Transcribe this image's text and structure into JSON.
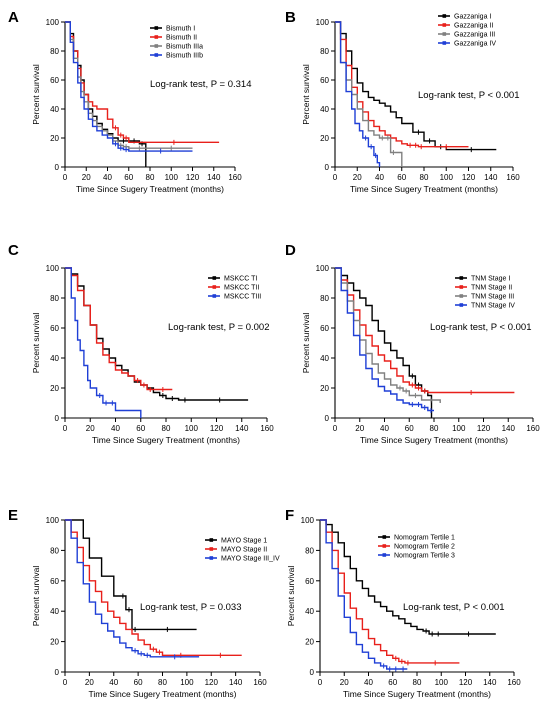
{
  "chart_data": [
    {
      "type": "line",
      "panel": "A",
      "ylabel": "Percent survival",
      "xlabel": "Time Since Sugery Treatment (months)",
      "xlim": [
        0,
        160
      ],
      "ylim": [
        0,
        100
      ],
      "xticks": [
        0,
        20,
        40,
        60,
        80,
        100,
        120,
        140,
        160
      ],
      "yticks": [
        0,
        20,
        40,
        60,
        80,
        100
      ],
      "annotation": "Log-rank test, P = 0.314",
      "legend_position": "top-right",
      "series": [
        {
          "name": "Bismuth I",
          "color": "#000000",
          "x": [
            0,
            5,
            8,
            12,
            15,
            18,
            22,
            26,
            30,
            35,
            40,
            45,
            50,
            60,
            70,
            75,
            76
          ],
          "y": [
            100,
            92,
            80,
            70,
            60,
            50,
            40,
            35,
            30,
            26,
            23,
            20,
            18,
            18,
            16,
            16,
            0
          ]
        },
        {
          "name": "Bismuth II",
          "color": "#e8201b",
          "x": [
            0,
            5,
            8,
            12,
            15,
            18,
            22,
            26,
            30,
            35,
            40,
            45,
            50,
            55,
            60,
            145
          ],
          "y": [
            100,
            90,
            80,
            68,
            58,
            50,
            45,
            42,
            40,
            40,
            33,
            27,
            22,
            20,
            17,
            17
          ]
        },
        {
          "name": "Bismuth IIIa",
          "color": "#808080",
          "x": [
            0,
            5,
            8,
            12,
            15,
            18,
            22,
            26,
            30,
            35,
            40,
            45,
            50,
            55,
            60,
            80,
            120
          ],
          "y": [
            100,
            88,
            75,
            62,
            52,
            45,
            37,
            32,
            28,
            25,
            22,
            18,
            15,
            14,
            13,
            13,
            13
          ]
        },
        {
          "name": "Bismuth IIIb",
          "color": "#1f3fd6",
          "x": [
            0,
            5,
            8,
            12,
            15,
            18,
            22,
            26,
            30,
            35,
            40,
            45,
            50,
            55,
            60,
            120
          ],
          "y": [
            100,
            86,
            72,
            58,
            48,
            40,
            33,
            28,
            25,
            22,
            20,
            16,
            13,
            12,
            11,
            11
          ]
        }
      ]
    },
    {
      "type": "line",
      "panel": "B",
      "ylabel": "Percent survival",
      "xlabel": "Time Since Sugery Treatment (months)",
      "xlim": [
        0,
        160
      ],
      "ylim": [
        0,
        100
      ],
      "xticks": [
        0,
        20,
        40,
        60,
        80,
        100,
        120,
        140,
        160
      ],
      "yticks": [
        0,
        20,
        40,
        60,
        80,
        100
      ],
      "annotation": "Log-rank test, P < 0.001",
      "legend_position": "top-right",
      "series": [
        {
          "name": "Gazzaniga I",
          "color": "#000000",
          "x": [
            0,
            5,
            10,
            15,
            20,
            25,
            30,
            35,
            40,
            45,
            50,
            55,
            60,
            70,
            80,
            90,
            100,
            145
          ],
          "y": [
            100,
            92,
            80,
            68,
            58,
            52,
            48,
            46,
            44,
            42,
            38,
            34,
            30,
            24,
            18,
            14,
            12,
            12
          ]
        },
        {
          "name": "Gazzaniga II",
          "color": "#e8201b",
          "x": [
            0,
            5,
            10,
            15,
            20,
            25,
            30,
            35,
            40,
            45,
            50,
            55,
            60,
            65,
            70,
            75,
            80,
            120
          ],
          "y": [
            100,
            88,
            70,
            55,
            45,
            38,
            32,
            28,
            25,
            22,
            20,
            18,
            16,
            15,
            15,
            14,
            14,
            14
          ]
        },
        {
          "name": "Gazzaniga III",
          "color": "#808080",
          "x": [
            0,
            5,
            10,
            15,
            20,
            25,
            30,
            35,
            40,
            45,
            50,
            55,
            60
          ],
          "y": [
            100,
            72,
            60,
            50,
            40,
            32,
            25,
            22,
            20,
            20,
            10,
            10,
            0
          ]
        },
        {
          "name": "Gazzaniga IV",
          "color": "#1f3fd6",
          "x": [
            0,
            5,
            10,
            15,
            18,
            22,
            25,
            30,
            35,
            38,
            40
          ],
          "y": [
            100,
            72,
            52,
            40,
            30,
            25,
            20,
            14,
            8,
            3,
            0
          ]
        }
      ]
    },
    {
      "type": "line",
      "panel": "C",
      "ylabel": "Percent survival",
      "xlabel": "Time Since Sugery Treatment (months)",
      "xlim": [
        0,
        160
      ],
      "ylim": [
        0,
        100
      ],
      "xticks": [
        0,
        20,
        40,
        60,
        80,
        100,
        120,
        140,
        160
      ],
      "yticks": [
        0,
        20,
        40,
        60,
        80,
        100
      ],
      "annotation": "Log-rank test, P = 0.002",
      "legend_position": "top-right",
      "series": [
        {
          "name": "MSKCC TI",
          "color": "#000000",
          "x": [
            0,
            5,
            10,
            15,
            20,
            25,
            30,
            35,
            40,
            45,
            50,
            55,
            60,
            65,
            70,
            75,
            80,
            90,
            100,
            145
          ],
          "y": [
            100,
            96,
            88,
            75,
            62,
            53,
            46,
            40,
            35,
            32,
            28,
            24,
            22,
            20,
            17,
            15,
            13,
            12,
            12,
            12
          ]
        },
        {
          "name": "MSKCC TII",
          "color": "#e8201b",
          "x": [
            0,
            5,
            10,
            15,
            20,
            25,
            30,
            35,
            40,
            45,
            50,
            55,
            60,
            65,
            70,
            85
          ],
          "y": [
            100,
            95,
            85,
            75,
            62,
            50,
            42,
            37,
            32,
            30,
            28,
            25,
            22,
            19,
            19,
            19
          ]
        },
        {
          "name": "MSKCC TIII",
          "color": "#1f3fd6",
          "x": [
            0,
            5,
            8,
            10,
            12,
            15,
            18,
            20,
            25,
            30,
            35,
            40,
            60
          ],
          "y": [
            100,
            80,
            65,
            52,
            45,
            35,
            25,
            20,
            15,
            10,
            10,
            5,
            0
          ]
        }
      ]
    },
    {
      "type": "line",
      "panel": "D",
      "ylabel": "Percent survival",
      "xlabel": "Time Since Sugery Treatment (months)",
      "xlim": [
        0,
        160
      ],
      "ylim": [
        0,
        100
      ],
      "xticks": [
        0,
        20,
        40,
        60,
        80,
        100,
        120,
        140,
        160
      ],
      "yticks": [
        0,
        20,
        40,
        60,
        80,
        100
      ],
      "annotation": "Log-rank test, P < 0.001",
      "legend_position": "top-right",
      "series": [
        {
          "name": "TNM Stage I",
          "color": "#000000",
          "x": [
            0,
            5,
            10,
            15,
            20,
            25,
            30,
            35,
            40,
            45,
            50,
            55,
            60,
            65,
            70,
            75,
            78
          ],
          "y": [
            100,
            95,
            90,
            85,
            80,
            75,
            65,
            58,
            50,
            45,
            40,
            35,
            28,
            22,
            18,
            15,
            0
          ]
        },
        {
          "name": "TNM Stage II",
          "color": "#e8201b",
          "x": [
            0,
            5,
            10,
            15,
            20,
            25,
            30,
            35,
            40,
            45,
            50,
            55,
            60,
            65,
            70,
            75,
            145
          ],
          "y": [
            100,
            92,
            82,
            72,
            62,
            55,
            48,
            42,
            38,
            33,
            28,
            24,
            22,
            20,
            18,
            17,
            17
          ]
        },
        {
          "name": "TNM Stage III",
          "color": "#808080",
          "x": [
            0,
            5,
            10,
            15,
            20,
            25,
            30,
            35,
            40,
            45,
            50,
            55,
            60,
            70,
            85
          ],
          "y": [
            100,
            90,
            78,
            65,
            52,
            43,
            36,
            30,
            26,
            22,
            20,
            18,
            15,
            12,
            10
          ]
        },
        {
          "name": "TNM Stage IV",
          "color": "#1f3fd6",
          "x": [
            0,
            5,
            10,
            15,
            20,
            25,
            30,
            35,
            40,
            45,
            50,
            55,
            60,
            65,
            70,
            75,
            80
          ],
          "y": [
            100,
            85,
            70,
            55,
            42,
            33,
            26,
            21,
            18,
            16,
            12,
            10,
            9,
            9,
            7,
            5,
            5
          ]
        }
      ]
    },
    {
      "type": "line",
      "panel": "E",
      "ylabel": "Percent survival",
      "xlabel": "Time Since Sugery Treatment (months)",
      "xlim": [
        0,
        160
      ],
      "ylim": [
        0,
        100
      ],
      "xticks": [
        0,
        20,
        40,
        60,
        80,
        100,
        120,
        140,
        160
      ],
      "yticks": [
        0,
        20,
        40,
        60,
        80,
        100
      ],
      "annotation": "Log-rank test, P = 0.033",
      "legend_position": "top-right",
      "series": [
        {
          "name": "MAYO Stage 1",
          "color": "#000000",
          "x": [
            0,
            10,
            15,
            20,
            25,
            30,
            35,
            40,
            45,
            50,
            55,
            60,
            108
          ],
          "y": [
            100,
            100,
            88,
            75,
            75,
            63,
            63,
            50,
            50,
            41,
            28,
            28,
            28
          ]
        },
        {
          "name": "MAYO Stage II",
          "color": "#e8201b",
          "x": [
            0,
            5,
            10,
            15,
            20,
            25,
            30,
            35,
            40,
            45,
            50,
            55,
            60,
            65,
            70,
            75,
            80,
            110,
            145
          ],
          "y": [
            100,
            92,
            82,
            70,
            60,
            53,
            46,
            40,
            36,
            32,
            28,
            25,
            21,
            18,
            15,
            13,
            11,
            11,
            11
          ]
        },
        {
          "name": "MAYO Stage III_IV",
          "color": "#1f3fd6",
          "x": [
            0,
            5,
            10,
            15,
            20,
            25,
            30,
            35,
            40,
            45,
            50,
            55,
            60,
            65,
            70,
            110
          ],
          "y": [
            100,
            88,
            72,
            58,
            46,
            38,
            32,
            27,
            23,
            19,
            16,
            14,
            12,
            11,
            10,
            10
          ]
        }
      ]
    },
    {
      "type": "line",
      "panel": "F",
      "ylabel": "Percent survival",
      "xlabel": "Time Since Sugery Treatment (months)",
      "xlim": [
        0,
        160
      ],
      "ylim": [
        0,
        100
      ],
      "xticks": [
        0,
        20,
        40,
        60,
        80,
        100,
        120,
        140,
        160
      ],
      "yticks": [
        0,
        20,
        40,
        60,
        80,
        100
      ],
      "annotation": "Log-rank test, P < 0.001",
      "legend_position": "top-right",
      "series": [
        {
          "name": "Nomogram Tertile 1",
          "color": "#000000",
          "x": [
            0,
            5,
            10,
            15,
            20,
            25,
            30,
            35,
            40,
            45,
            50,
            55,
            60,
            65,
            70,
            75,
            80,
            85,
            90,
            95,
            100,
            145
          ],
          "y": [
            100,
            97,
            92,
            85,
            76,
            68,
            60,
            55,
            50,
            46,
            43,
            40,
            37,
            35,
            32,
            30,
            28,
            27,
            25,
            25,
            25,
            25
          ]
        },
        {
          "name": "Nomogram Tertile 2",
          "color": "#e8201b",
          "x": [
            0,
            5,
            10,
            15,
            20,
            25,
            30,
            35,
            40,
            45,
            50,
            55,
            60,
            65,
            70,
            75,
            115
          ],
          "y": [
            100,
            92,
            80,
            65,
            52,
            42,
            35,
            28,
            22,
            18,
            14,
            11,
            9,
            7,
            6,
            6,
            6
          ]
        },
        {
          "name": "Nomogram Tertile 3",
          "color": "#1f3fd6",
          "x": [
            0,
            5,
            10,
            15,
            20,
            25,
            30,
            35,
            40,
            45,
            50,
            55,
            60,
            65,
            72
          ],
          "y": [
            100,
            85,
            68,
            50,
            36,
            26,
            18,
            13,
            9,
            6,
            4,
            2,
            2,
            2,
            2
          ]
        }
      ]
    }
  ]
}
